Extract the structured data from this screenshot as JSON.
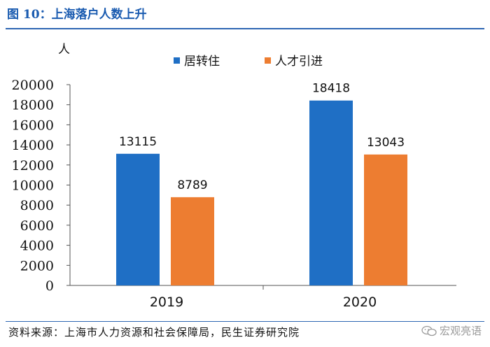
{
  "figure": {
    "title": "图 10：上海落户人数上升",
    "source": "资料来源：上海市人力资源和社会保障局，民生证券研究院",
    "watermark": "宏观亮语",
    "watermark_icon": "wechat-icon"
  },
  "chart_data": {
    "type": "bar",
    "categories": [
      "2019",
      "2020"
    ],
    "series": [
      {
        "name": "居转住",
        "values": [
          13115,
          18418
        ],
        "color": "#1f6fc5"
      },
      {
        "name": "人才引进",
        "values": [
          8789,
          13043
        ],
        "color": "#ed7d31"
      }
    ],
    "ylabel": "人",
    "ylim": [
      0,
      20000
    ],
    "yticks": [
      0,
      2000,
      4000,
      6000,
      8000,
      10000,
      12000,
      14000,
      16000,
      18000,
      20000
    ],
    "legend": "top-center",
    "grid": false,
    "data_labels": true
  }
}
